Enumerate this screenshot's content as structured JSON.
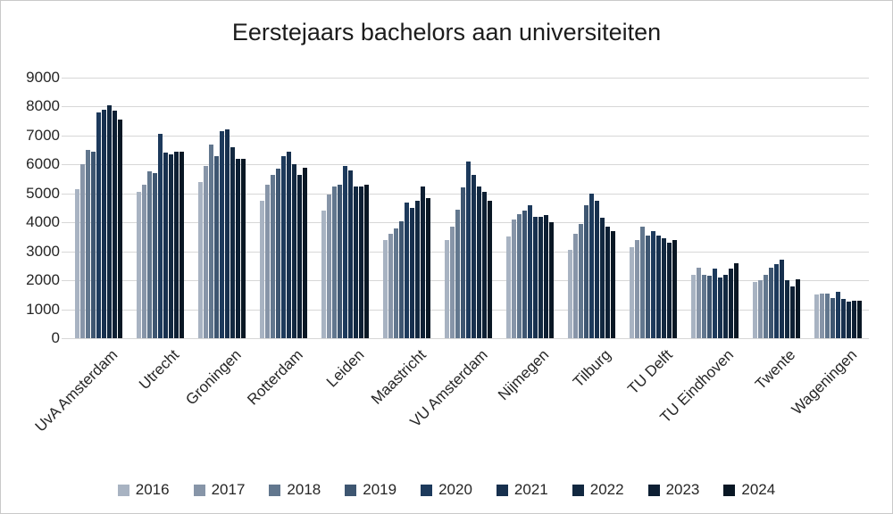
{
  "chart_data": {
    "type": "bar",
    "title": "Eerstejaars bachelors aan universiteiten",
    "categories": [
      "UvA Amsterdam",
      "Utrecht",
      "Groningen",
      "Rotterdam",
      "Leiden",
      "Maastricht",
      "VU Amsterdam",
      "Nijmegen",
      "Tilburg",
      "TU Delft",
      "TU Eindhoven",
      "Twente",
      "Wageningen"
    ],
    "series": [
      {
        "name": "2016",
        "color": "#a8b3c2",
        "values": [
          5150,
          5050,
          5400,
          4750,
          4400,
          3400,
          3400,
          3500,
          3050,
          3150,
          2200,
          1950,
          1500
        ]
      },
      {
        "name": "2017",
        "color": "#8795a8",
        "values": [
          6000,
          5300,
          5950,
          5300,
          4950,
          3600,
          3850,
          4100,
          3600,
          3400,
          2450,
          2000,
          1550
        ]
      },
      {
        "name": "2018",
        "color": "#62778e",
        "values": [
          6500,
          5750,
          6700,
          5650,
          5250,
          3800,
          4450,
          4300,
          3950,
          3850,
          2200,
          2200,
          1550
        ]
      },
      {
        "name": "2019",
        "color": "#3e5671",
        "values": [
          6450,
          5700,
          6300,
          5850,
          5300,
          4050,
          5200,
          4400,
          4600,
          3550,
          2150,
          2450,
          1400
        ]
      },
      {
        "name": "2020",
        "color": "#1d3a5c",
        "values": [
          7800,
          7050,
          7150,
          6300,
          5950,
          4700,
          6100,
          4600,
          5000,
          3700,
          2400,
          2550,
          1600
        ]
      },
      {
        "name": "2021",
        "color": "#17304e",
        "values": [
          7900,
          6400,
          7200,
          6450,
          5800,
          4500,
          5650,
          4200,
          4750,
          3550,
          2100,
          2700,
          1350
        ]
      },
      {
        "name": "2022",
        "color": "#122840",
        "values": [
          8050,
          6350,
          6600,
          6000,
          5250,
          4750,
          5250,
          4200,
          4150,
          3450,
          2200,
          2000,
          1250
        ]
      },
      {
        "name": "2023",
        "color": "#0d1f33",
        "values": [
          7850,
          6450,
          6200,
          5650,
          5250,
          5250,
          5050,
          4250,
          3850,
          3300,
          2400,
          1800,
          1300
        ]
      },
      {
        "name": "2024",
        "color": "#091724",
        "values": [
          7550,
          6450,
          6200,
          5900,
          5300,
          4850,
          4750,
          4000,
          3700,
          3400,
          2600,
          2050,
          1300
        ]
      }
    ],
    "ylabel": "",
    "xlabel": "",
    "ylim": [
      0,
      9000
    ],
    "ytick_step": 1000,
    "grid": true,
    "legend_position": "bottom"
  }
}
